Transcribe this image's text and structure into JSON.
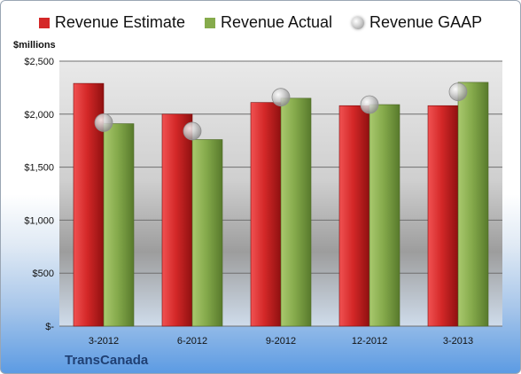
{
  "legend": {
    "estimate": "Revenue Estimate",
    "actual": "Revenue Actual",
    "gaap": "Revenue GAAP"
  },
  "unit_label": "$millions",
  "company": "TransCanada",
  "colors": {
    "estimate": "#d42828",
    "actual": "#86ab4c",
    "gaap": "#b8b8b8"
  },
  "chart_data": {
    "type": "bar",
    "categories": [
      "3-2012",
      "6-2012",
      "9-2012",
      "12-2012",
      "3-2013"
    ],
    "series": [
      {
        "name": "Revenue Estimate",
        "values": [
          2290,
          2000,
          2110,
          2080,
          2080
        ]
      },
      {
        "name": "Revenue Actual",
        "values": [
          1910,
          1760,
          2150,
          2090,
          2300
        ]
      },
      {
        "name": "Revenue GAAP",
        "type": "scatter",
        "values": [
          1920,
          1840,
          2160,
          2090,
          2210
        ]
      }
    ],
    "yticks": [
      "$-",
      "$500",
      "$1,000",
      "$1,500",
      "$2,000",
      "$2,500"
    ],
    "ylabel": "$millions",
    "ylim": [
      0,
      2500
    ],
    "grid": true,
    "legend": "top"
  }
}
